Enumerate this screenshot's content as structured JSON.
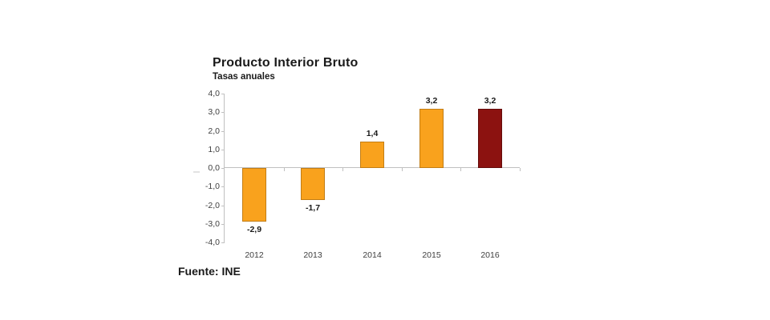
{
  "chart_data": {
    "type": "bar",
    "title": "Producto Interior Bruto",
    "subtitle": "Tasas anuales",
    "source": "Fuente: INE",
    "categories": [
      "2012",
      "2013",
      "2014",
      "2015",
      "2016"
    ],
    "values": [
      -2.9,
      -1.7,
      1.4,
      3.2,
      3.2
    ],
    "value_labels": [
      "-2,9",
      "-1,7",
      "1,4",
      "3,2",
      "3,2"
    ],
    "bar_fill_colors": [
      "#f9a21d",
      "#f9a21d",
      "#f9a21d",
      "#f9a21d",
      "#8c1210"
    ],
    "bar_border_colors": [
      "#c27d15",
      "#c27d15",
      "#c27d15",
      "#c27d15",
      "#640c0b"
    ],
    "ylim": [
      -4,
      4
    ],
    "ytick_step": 1,
    "ytick_labels": [
      "4,0",
      "3,0",
      "2,0",
      "1,0",
      "0,0",
      "-1,0",
      "-2,0",
      "-3,0",
      "-4,0"
    ],
    "grid": false,
    "legend": false,
    "axis_color": "#c0c0c0",
    "axis_text_color": "#3f3f3f",
    "label_text_color": "#1a1a1a",
    "background_color": "#ffffff"
  }
}
